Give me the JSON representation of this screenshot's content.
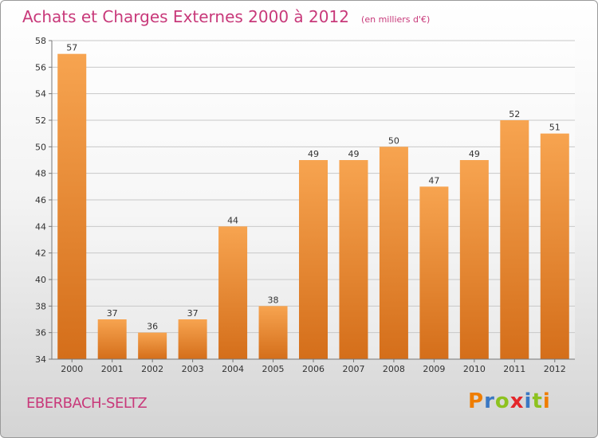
{
  "chart_data": {
    "type": "bar",
    "title": "Achats et Charges Externes 2000 à 2012",
    "subtitle": "(en milliers d'€)",
    "categories": [
      "2000",
      "2001",
      "2002",
      "2003",
      "2004",
      "2005",
      "2006",
      "2007",
      "2008",
      "2009",
      "2010",
      "2011",
      "2012"
    ],
    "values": [
      57,
      37,
      36,
      37,
      44,
      38,
      49,
      49,
      50,
      47,
      49,
      52,
      51
    ],
    "ylim": [
      34,
      58
    ],
    "yticks": [
      34,
      36,
      38,
      40,
      42,
      44,
      46,
      48,
      50,
      52,
      54,
      56,
      58
    ],
    "xlabel": "",
    "ylabel": "",
    "grid": true,
    "bar_color_top": "#f7a450",
    "bar_color_bottom": "#d46e1a",
    "legend": "none"
  },
  "footer": {
    "commune": "EBERBACH-SELTZ",
    "logo_letters": [
      "P",
      "r",
      "o",
      "x",
      "i",
      "t",
      "i"
    ],
    "logo_colors": [
      "#ef7d00",
      "#3a78c3",
      "#8dc21f",
      "#e4262a",
      "#3a78c3",
      "#8dc21f",
      "#ef7d00"
    ]
  }
}
